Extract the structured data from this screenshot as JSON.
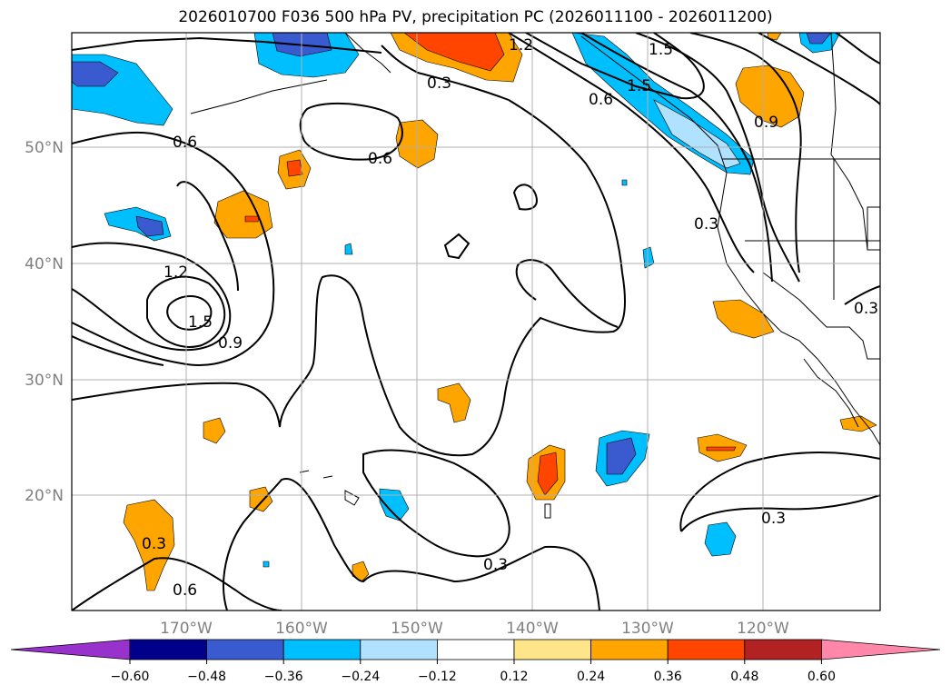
{
  "title": "2026010700 F036 500 hPa PV, precipitation PC (2026011100 - 2026011200)",
  "lat_labels": [
    "50°N",
    "40°N",
    "30°N",
    "20°N"
  ],
  "lon_labels": [
    "170°W",
    "160°W",
    "150°W",
    "140°W",
    "130°W",
    "120°W"
  ],
  "contour_labels": [
    "1.2",
    "1.5",
    "0.3",
    "0.6",
    "1.5",
    "0.6",
    "0.9",
    "0.6",
    "1.2",
    "1.5",
    "0.9",
    "0.3",
    "0.3",
    "0.3",
    "0.3",
    "0.3",
    "0.6"
  ],
  "colorbar": {
    "ticks": [
      "−0.60",
      "−0.48",
      "−0.36",
      "−0.24",
      "−0.12",
      "0.12",
      "0.24",
      "0.36",
      "0.48",
      "0.60"
    ],
    "colors": [
      "#9932cc",
      "#00008b",
      "#3a5bd0",
      "#00bfff",
      "#b0e2ff",
      "#ffffff",
      "#ffe58a",
      "#ffa500",
      "#ff4500",
      "#b22222",
      "#ff88aa"
    ]
  },
  "colors": {
    "grid": "#b0b0b0",
    "axis_label": "#808080",
    "contour": "#000000"
  }
}
